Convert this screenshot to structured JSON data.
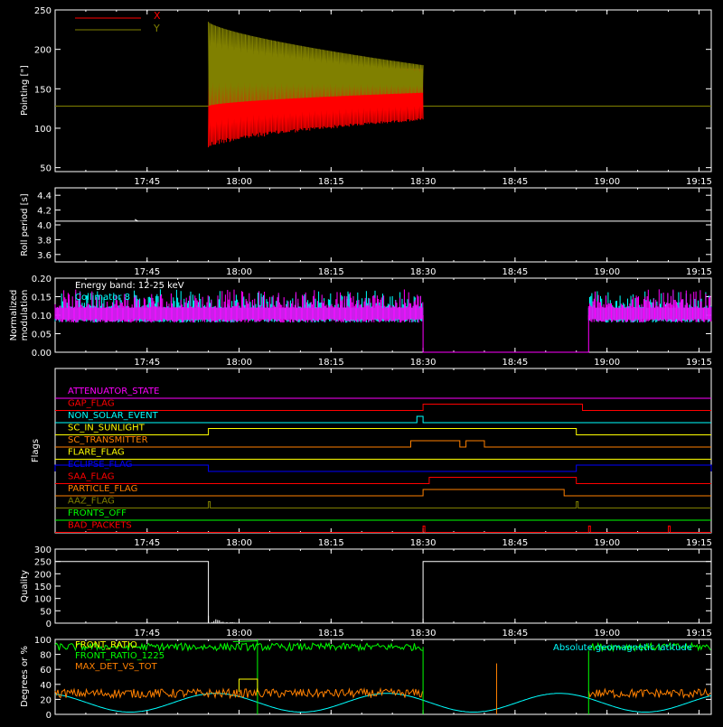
{
  "x_axis": {
    "start": "17:30",
    "end": "19:17",
    "tick_labels": [
      "17:45",
      "18:00",
      "18:15",
      "18:30",
      "18:45",
      "19:00",
      "19:15"
    ],
    "tick_minutes": [
      1065,
      1080,
      1095,
      1110,
      1125,
      1140,
      1155
    ]
  },
  "colors": {
    "background": "#000000",
    "axes": "#ffffff",
    "red": "#ff0000",
    "olive": "#808000",
    "cyan": "#00ffff",
    "magenta": "#ff00ff",
    "green": "#00ff00",
    "orange": "#ff8000",
    "yellow": "#ffff00",
    "blue": "#0000ff"
  },
  "chart_data": [
    {
      "type": "line",
      "ylabel": "Pointing [\"]",
      "ylim": [
        45,
        250
      ],
      "yticks": [
        50,
        100,
        150,
        200,
        250
      ],
      "legend_position": "top-left",
      "series": [
        {
          "name": "X",
          "color": "#ff0000",
          "baseline": 128,
          "oscillation": {
            "start": "17:55",
            "end": "18:30",
            "center": 128,
            "amp_start": 55,
            "amp_end": 18,
            "peak_center": 182,
            "peak_end_value": 175
          }
        },
        {
          "name": "Y",
          "color": "#808000",
          "baseline": 128,
          "oscillation": {
            "start": "17:55",
            "end": "18:30",
            "peak_value": 235,
            "peak_end_value": 180,
            "trough_end_value": 145
          }
        }
      ]
    },
    {
      "type": "line",
      "ylabel": "Roll period [s]",
      "ylim": [
        3.5,
        4.5
      ],
      "yticks": [
        3.6,
        3.8,
        4.0,
        4.2,
        4.4
      ],
      "series": [
        {
          "name": "",
          "color": "#ffffff",
          "x": [
            "17:30",
            "19:17"
          ],
          "y": [
            4.05,
            4.05
          ]
        }
      ]
    },
    {
      "type": "line",
      "ylabel": "Normalized modulation",
      "ylim": [
        0,
        0.2
      ],
      "yticks": [
        0.0,
        0.05,
        0.1,
        0.15,
        0.2
      ],
      "annotation": "Energy band: 12-25 keV",
      "series": [
        {
          "name": "Collimator 8",
          "color": "#00ffff",
          "mean": 0.1,
          "active_ranges": [
            [
              "17:30",
              "18:30"
            ],
            [
              "18:57",
              "19:17"
            ]
          ]
        },
        {
          "name": "",
          "color": "#ff00ff",
          "mean": 0.1,
          "active_ranges": [
            [
              "17:30",
              "18:30"
            ],
            [
              "18:57",
              "19:17"
            ]
          ]
        }
      ]
    },
    {
      "type": "line",
      "ylabel": "Flags",
      "flags": [
        {
          "label": "ATTENUATOR_STATE",
          "color": "#ff00ff",
          "on_ranges": []
        },
        {
          "label": "GAP_FLAG",
          "color": "#ff0000",
          "on_ranges": [
            [
              "18:30",
              "18:56"
            ]
          ]
        },
        {
          "label": "NON_SOLAR_EVENT",
          "color": "#00ffff",
          "on_ranges": [
            [
              "18:29",
              "18:30"
            ]
          ]
        },
        {
          "label": "SC_IN_SUNLIGHT",
          "color": "#ffff00",
          "on_ranges": [
            [
              "17:55",
              "18:55"
            ]
          ]
        },
        {
          "label": "SC_TRANSMITTER",
          "color": "#ff8000",
          "on_ranges": [
            [
              "18:28",
              "18:36"
            ],
            [
              "18:37",
              "18:40"
            ]
          ]
        },
        {
          "label": "FLARE_FLAG",
          "color": "#ffff00",
          "on_ranges": []
        },
        {
          "label": "ECLIPSE_FLAG",
          "color": "#0000ff",
          "on_ranges": [
            [
              "17:30",
              "17:55"
            ],
            [
              "18:55",
              "19:17"
            ]
          ]
        },
        {
          "label": "SAA_FLAG",
          "color": "#ff0000",
          "on_ranges": [
            [
              "18:31",
              "18:55"
            ]
          ]
        },
        {
          "label": "PARTICLE_FLAG",
          "color": "#ff8000",
          "on_ranges": [
            [
              "18:30",
              "18:53"
            ]
          ]
        },
        {
          "label": "AAZ_FLAG",
          "color": "#808000",
          "on_ranges": [
            [
              "17:55",
              "17:55"
            ],
            [
              "18:55",
              "18:55"
            ]
          ]
        },
        {
          "label": "FRONTS_OFF",
          "color": "#00ff00",
          "on_ranges": []
        },
        {
          "label": "BAD_PACKETS",
          "color": "#ff0000",
          "on_ranges": [
            [
              "18:30",
              "18:30"
            ],
            [
              "18:57",
              "18:57"
            ],
            [
              "19:10",
              "19:10"
            ]
          ]
        }
      ]
    },
    {
      "type": "line",
      "ylabel": "Quality",
      "ylim": [
        0,
        300
      ],
      "yticks": [
        0,
        50,
        100,
        150,
        200,
        250,
        300
      ],
      "series": [
        {
          "name": "",
          "color": "#ffffff",
          "x": [
            "17:30",
            "17:55",
            "17:55",
            "18:30",
            "18:30",
            "19:17"
          ],
          "y": [
            250,
            250,
            0,
            0,
            250,
            250
          ]
        }
      ]
    },
    {
      "type": "line",
      "ylabel": "Degrees or %",
      "ylim": [
        0,
        100
      ],
      "yticks": [
        0,
        20,
        40,
        60,
        80,
        100
      ],
      "series": [
        {
          "name": "FRONT_RATIO",
          "color": "#ffff00"
        },
        {
          "name": "FRONT_RATIO_1225",
          "color": "#00ff00",
          "level": 90,
          "active_ranges": [
            [
              "17:30",
              "18:30"
            ],
            [
              "18:57",
              "19:17"
            ]
          ]
        },
        {
          "name": "MAX_DET_VS_TOT",
          "color": "#ff8000",
          "level": 28,
          "active_ranges": [
            [
              "17:30",
              "18:30"
            ],
            [
              "18:57",
              "19:17"
            ]
          ]
        },
        {
          "name": "Absolute geomagnetic latitude",
          "color": "#00ffff",
          "wave": {
            "min": 3,
            "max": 28
          }
        }
      ]
    }
  ]
}
